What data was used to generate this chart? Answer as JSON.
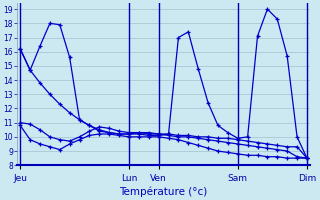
{
  "xlabel": "Température (°c)",
  "ylim": [
    8,
    19.4
  ],
  "yticks": [
    8,
    9,
    10,
    11,
    12,
    13,
    14,
    15,
    16,
    17,
    18,
    19
  ],
  "bg_color": "#cce8f0",
  "grid_color": "#a0c4d0",
  "line_color": "#0000cc",
  "day_labels": [
    "Jeu",
    "Lun",
    "Ven",
    "Sam",
    "Dim"
  ],
  "day_positions": [
    0,
    11,
    14,
    22,
    29
  ],
  "xlim": [
    -0.3,
    29.3
  ],
  "n_points": 30,
  "lines": [
    [
      16.2,
      14.7,
      13.8,
      13.0,
      12.3,
      11.7,
      11.2,
      10.8,
      10.5,
      10.3,
      10.2,
      10.2,
      10.3,
      10.3,
      10.2,
      10.2,
      10.1,
      10.1,
      10.0,
      10.0,
      9.9,
      9.9,
      9.8,
      9.7,
      9.6,
      9.5,
      9.4,
      9.3,
      9.3,
      8.5
    ],
    [
      11.0,
      10.9,
      10.5,
      10.0,
      9.8,
      9.7,
      10.0,
      10.4,
      10.7,
      10.6,
      10.4,
      10.3,
      10.3,
      10.2,
      10.2,
      10.1,
      10.0,
      10.0,
      9.9,
      9.8,
      9.7,
      9.6,
      9.5,
      9.4,
      9.3,
      9.2,
      9.1,
      9.0,
      8.6,
      8.5
    ],
    [
      10.8,
      9.8,
      9.5,
      9.3,
      9.1,
      9.5,
      9.8,
      10.1,
      10.2,
      10.2,
      10.1,
      10.0,
      10.0,
      10.0,
      10.0,
      9.9,
      9.8,
      9.6,
      9.4,
      9.2,
      9.0,
      8.9,
      8.8,
      8.7,
      8.7,
      8.6,
      8.6,
      8.5,
      8.5,
      8.5
    ],
    [
      16.2,
      14.7,
      16.4,
      18.0,
      17.9,
      15.6,
      11.2,
      10.8,
      10.4,
      10.3,
      10.2,
      10.2,
      10.2,
      10.1,
      10.1,
      10.2,
      17.0,
      17.4,
      14.8,
      12.4,
      10.8,
      10.3,
      9.9,
      10.0,
      17.1,
      19.0,
      18.3,
      15.7,
      10.0,
      8.5
    ]
  ]
}
